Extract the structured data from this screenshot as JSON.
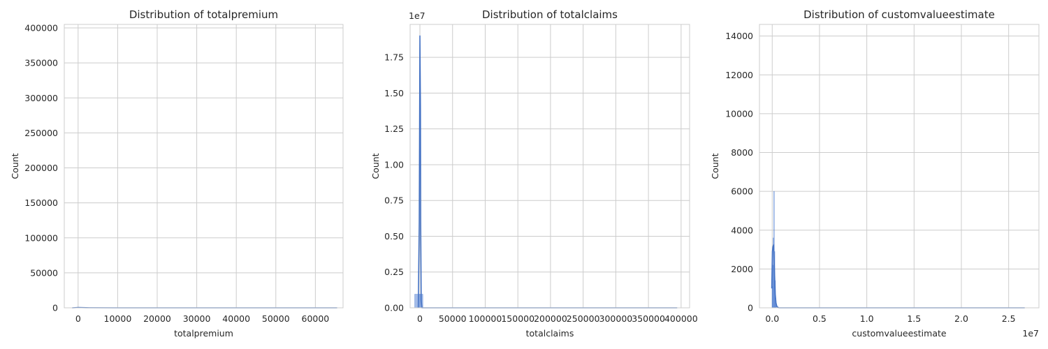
{
  "chart_data": [
    {
      "type": "histogram",
      "title": "Distribution of totalpremium",
      "xlabel": "totalpremium",
      "ylabel": "Count",
      "xlim": [
        -3500,
        67000
      ],
      "ylim": [
        0,
        405000
      ],
      "xticks": [
        0,
        10000,
        20000,
        30000,
        40000,
        50000,
        60000
      ],
      "xtick_labels": [
        "0",
        "10000",
        "20000",
        "30000",
        "40000",
        "50000",
        "60000"
      ],
      "yticks": [
        0,
        50000,
        100000,
        150000,
        200000,
        250000,
        300000,
        350000,
        400000
      ],
      "ytick_labels": [
        "0",
        "50000",
        "100000",
        "150000",
        "200000",
        "250000",
        "300000",
        "350000",
        "400000"
      ],
      "y_offset_label": "",
      "bins": [],
      "kde": {
        "x": [
          -1500,
          0,
          2000,
          10000,
          30000,
          50000,
          65500
        ],
        "y": [
          0,
          400,
          150,
          0,
          0,
          0,
          0
        ]
      },
      "color": "#4878cf"
    },
    {
      "type": "histogram",
      "title": "Distribution of totalclaims",
      "xlabel": "totalclaims",
      "ylabel": "Count",
      "xlim": [
        -15000,
        413000
      ],
      "ylim": [
        0,
        19800000
      ],
      "xticks": [
        0,
        50000,
        100000,
        150000,
        200000,
        250000,
        300000,
        350000,
        400000
      ],
      "xtick_labels": [
        "0",
        "50000",
        "100000",
        "150000",
        "200000",
        "250000",
        "300000",
        "350000",
        "400000"
      ],
      "yticks": [
        0,
        2500000,
        5000000,
        7500000,
        10000000,
        12500000,
        15000000,
        17500000
      ],
      "ytick_labels": [
        "0.00",
        "0.25",
        "0.50",
        "0.75",
        "1.00",
        "1.25",
        "1.50",
        "1.75"
      ],
      "y_offset_label": "1e7",
      "bins": [
        {
          "x0": -8000,
          "x1": 0,
          "value": 950000
        },
        {
          "x0": 0,
          "x1": 4500,
          "value": 950000
        }
      ],
      "kde": {
        "x": [
          -2500,
          -1000,
          0,
          800,
          1200,
          2000,
          3000,
          10000,
          200000,
          394000
        ],
        "y": [
          0,
          6000000,
          19000000,
          14000000,
          6000000,
          500000,
          0,
          0,
          0,
          0
        ]
      },
      "color": "#4878cf"
    },
    {
      "type": "histogram",
      "title": "Distribution of customvalueestimate",
      "xlabel": "customvalueestimate",
      "ylabel": "Count",
      "xlim": [
        -1350000,
        28200000
      ],
      "ylim": [
        0,
        14600
      ],
      "xticks": [
        0,
        5000000,
        10000000,
        15000000,
        20000000,
        25000000
      ],
      "xtick_labels": [
        "0.0",
        "0.5",
        "1.0",
        "1.5",
        "2.0",
        "2.5"
      ],
      "yticks": [
        0,
        2000,
        4000,
        6000,
        8000,
        10000,
        12000,
        14000
      ],
      "ytick_labels": [
        "0",
        "2000",
        "4000",
        "6000",
        "8000",
        "10000",
        "12000",
        "14000"
      ],
      "y_offset_label": "",
      "x_offset_label": "1e7",
      "bins": [
        {
          "x0": -20000,
          "x1": 40000,
          "value": 1100
        },
        {
          "x0": 40000,
          "x1": 100000,
          "value": 2200
        },
        {
          "x0": 100000,
          "x1": 160000,
          "value": 3600
        },
        {
          "x0": 160000,
          "x1": 220000,
          "value": 6000
        },
        {
          "x0": 220000,
          "x1": 280000,
          "value": 2900
        },
        {
          "x0": 280000,
          "x1": 340000,
          "value": 1400
        },
        {
          "x0": 340000,
          "x1": 400000,
          "value": 500
        },
        {
          "x0": 400000,
          "x1": 460000,
          "value": 150
        }
      ],
      "kde": {
        "x": [
          -50000,
          20000,
          80000,
          150000,
          230000,
          320000,
          400000,
          500000,
          700000,
          26700000
        ],
        "y": [
          1000,
          2900,
          3150,
          3250,
          2000,
          700,
          250,
          60,
          0,
          0
        ]
      },
      "color": "#4878cf"
    }
  ]
}
